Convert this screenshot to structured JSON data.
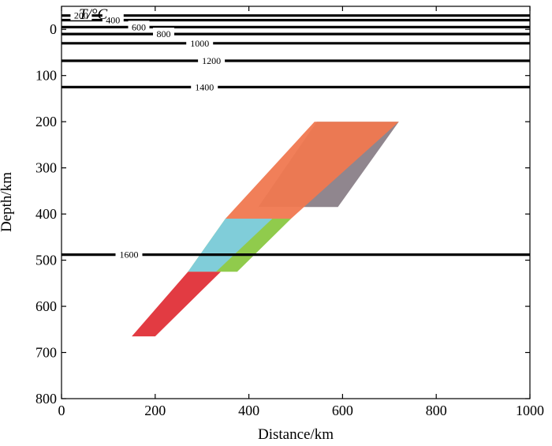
{
  "chart_data": {
    "type": "line",
    "title": "",
    "xlabel": "Distance/km",
    "ylabel": "Depth/km",
    "legend_title": "T/°C",
    "xlim": [
      0,
      1000
    ],
    "ylim": [
      800,
      -50
    ],
    "y_inverted": true,
    "grid": false,
    "x_ticks": [
      "0",
      "200",
      "400",
      "600",
      "800",
      "1000"
    ],
    "y_ticks": [
      "0",
      "100",
      "200",
      "300",
      "400",
      "500",
      "600",
      "700",
      "800"
    ],
    "isotherms": [
      {
        "name": "200",
        "label": "200",
        "label_at": [
          42,
          -30
        ],
        "points": [
          [
            0,
            -30
          ],
          [
            600,
            -30
          ],
          [
            760,
            -30
          ],
          [
            1000,
            -30
          ]
        ]
      },
      {
        "name": "400",
        "label": "400",
        "label_at": [
          110,
          -20
        ],
        "points": [
          [
            0,
            -20
          ],
          [
            600,
            -20
          ],
          [
            780,
            -20
          ],
          [
            1000,
            -20
          ]
        ]
      },
      {
        "name": "600",
        "label": "600",
        "label_at": [
          165,
          -5
        ],
        "points": [
          [
            0,
            -5
          ],
          [
            600,
            -5
          ],
          [
            790,
            -5
          ],
          [
            1000,
            -5
          ]
        ]
      },
      {
        "name": "800",
        "label": "800",
        "label_at": [
          218,
          10
        ],
        "points": [
          [
            0,
            10
          ],
          [
            600,
            10
          ],
          [
            800,
            10
          ],
          [
            1000,
            10
          ]
        ]
      },
      {
        "name": "1000",
        "label": "1000",
        "label_at": [
          295,
          30
        ],
        "points": [
          [
            0,
            30
          ],
          [
            600,
            30
          ],
          [
            820,
            30
          ],
          [
            1000,
            30
          ]
        ]
      },
      {
        "name": "1200",
        "label": "1200",
        "label_at": [
          320,
          68
        ],
        "points": [
          [
            0,
            68
          ],
          [
            600,
            68
          ],
          [
            840,
            68
          ],
          [
            1000,
            68
          ]
        ]
      },
      {
        "name": "1400",
        "label": "1400",
        "label_at": [
          305,
          125
        ],
        "points": [
          [
            0,
            125
          ],
          [
            300,
            125
          ],
          [
            1000,
            125
          ]
        ]
      },
      {
        "name": "1600",
        "label": "1600",
        "label_at": [
          144,
          488
        ],
        "points": [
          [
            0,
            488
          ],
          [
            100,
            488
          ],
          [
            1000,
            488
          ]
        ]
      }
    ],
    "regions": [
      {
        "name": "grey",
        "color": "#8a8088",
        "points": [
          [
            545,
            200
          ],
          [
            720,
            200
          ],
          [
            590,
            385
          ],
          [
            420,
            385
          ]
        ]
      },
      {
        "name": "orange-upper",
        "color": "#f07850",
        "points": [
          [
            540,
            200
          ],
          [
            720,
            200
          ],
          [
            490,
            410
          ],
          [
            350,
            410
          ]
        ]
      },
      {
        "name": "green",
        "color": "#8ac842",
        "points": [
          [
            350,
            410
          ],
          [
            490,
            410
          ],
          [
            375,
            525
          ],
          [
            270,
            525
          ]
        ]
      },
      {
        "name": "cyan",
        "color": "#80cce0",
        "points": [
          [
            350,
            410
          ],
          [
            450,
            410
          ],
          [
            330,
            525
          ],
          [
            270,
            525
          ]
        ]
      },
      {
        "name": "red",
        "color": "#e03038",
        "points": [
          [
            270,
            525
          ],
          [
            340,
            525
          ],
          [
            200,
            665
          ],
          [
            150,
            665
          ]
        ]
      }
    ]
  }
}
